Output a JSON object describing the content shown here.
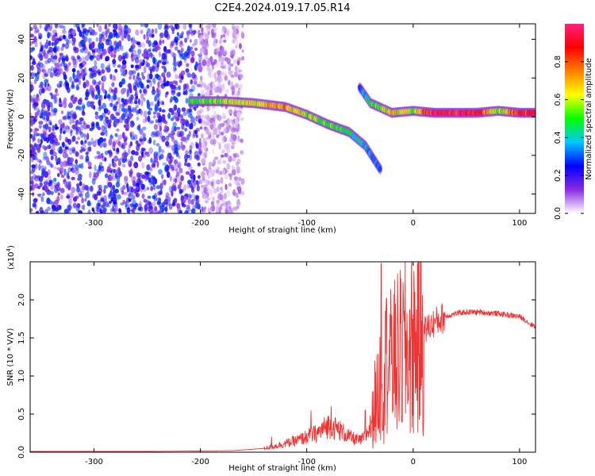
{
  "title": "C2E4.2024.019.17.05.R14",
  "chart_data": [
    {
      "type": "heatmap",
      "xlabel": "Height of straight line (km)",
      "ylabel": "Frequency (Hz)",
      "xlim": [
        -360,
        115
      ],
      "ylim": [
        -50,
        48
      ],
      "xticks": [
        -300,
        -200,
        -100,
        0,
        100
      ],
      "yticks": [
        -40,
        -20,
        0,
        20,
        40
      ],
      "colorbar": {
        "label": "Normalized spectral amplitude",
        "range": [
          0,
          1
        ],
        "ticks": [
          "0.0",
          "0.2",
          "0.4",
          "0.6",
          "0.8"
        ],
        "colormap": [
          "#ffffff",
          "#8a2be2",
          "#0000ff",
          "#00c8ff",
          "#00ff00",
          "#ffff00",
          "#ff8000",
          "#ff0000",
          "#ff2080"
        ]
      },
      "noise_region": {
        "x_range": [
          -360,
          -200
        ],
        "freq_range": [
          -50,
          48
        ],
        "amplitude": 0.2
      },
      "signal_track": [
        {
          "x": -210,
          "freq": 8,
          "amp": 0.5
        },
        {
          "x": -180,
          "freq": 8,
          "amp": 0.6
        },
        {
          "x": -150,
          "freq": 7,
          "amp": 0.65
        },
        {
          "x": -120,
          "freq": 5,
          "amp": 0.75
        },
        {
          "x": -100,
          "freq": 1,
          "amp": 0.6
        },
        {
          "x": -80,
          "freq": -4,
          "amp": 0.55
        },
        {
          "x": -60,
          "freq": -8,
          "amp": 0.5
        },
        {
          "x": -45,
          "freq": -15,
          "amp": 0.4
        },
        {
          "x": -30,
          "freq": -28,
          "amp": 0.3
        },
        {
          "x": -50,
          "freq": 15,
          "amp": 0.3
        },
        {
          "x": -40,
          "freq": 7,
          "amp": 0.5
        },
        {
          "x": -20,
          "freq": 2,
          "amp": 0.7
        },
        {
          "x": 0,
          "freq": 3,
          "amp": 0.6
        },
        {
          "x": 20,
          "freq": 2,
          "amp": 0.95
        },
        {
          "x": 60,
          "freq": 2,
          "amp": 0.95
        },
        {
          "x": 80,
          "freq": 3,
          "amp": 0.6
        },
        {
          "x": 100,
          "freq": 2,
          "amp": 0.9
        },
        {
          "x": 115,
          "freq": 2,
          "amp": 0.9
        }
      ]
    },
    {
      "type": "line",
      "xlabel": "Height of straight line (km)",
      "ylabel": "SNR (10 * V/V)",
      "y_multiplier": "(x10",
      "y_multiplier_exp": "4",
      "y_multiplier_close": ")",
      "xlim": [
        -360,
        115
      ],
      "ylim": [
        0,
        2.5
      ],
      "xticks": [
        -300,
        -200,
        -100,
        0,
        100
      ],
      "yticks": [
        "0.0",
        "0.5",
        "1.0",
        "1.5",
        "2.0"
      ],
      "color": "#ee3333",
      "envelope": {
        "x": [
          -360,
          -250,
          -170,
          -140,
          -130,
          -110,
          -100,
          -90,
          -85,
          -80,
          -70,
          -60,
          -50,
          -45,
          -40,
          -35,
          -30,
          -25,
          -20,
          -15,
          -10,
          -5,
          0,
          10,
          20,
          30,
          40,
          50,
          60,
          70,
          80,
          90,
          100,
          105,
          110,
          115
        ],
        "y": [
          0.01,
          0.01,
          0.02,
          0.05,
          0.08,
          0.15,
          0.2,
          0.25,
          0.3,
          0.35,
          0.3,
          0.2,
          0.15,
          0.2,
          0.35,
          0.6,
          1.0,
          1.1,
          1.15,
          1.25,
          1.3,
          1.35,
          1.45,
          1.6,
          1.7,
          1.78,
          1.82,
          1.84,
          1.84,
          1.83,
          1.82,
          1.8,
          1.78,
          1.74,
          1.68,
          1.66
        ]
      },
      "spikes": [
        {
          "x": -133,
          "y": 0.2
        },
        {
          "x": -96,
          "y": 0.55
        },
        {
          "x": -77,
          "y": 0.6
        },
        {
          "x": -45,
          "y": 0.55
        },
        {
          "x": -36,
          "y": 1.2
        },
        {
          "x": -30,
          "y": 2.48
        },
        {
          "x": -25,
          "y": 2.02
        },
        {
          "x": -20,
          "y": 1.8
        },
        {
          "x": -14,
          "y": 1.6
        },
        {
          "x": -2,
          "y": 1.5
        }
      ]
    }
  ]
}
